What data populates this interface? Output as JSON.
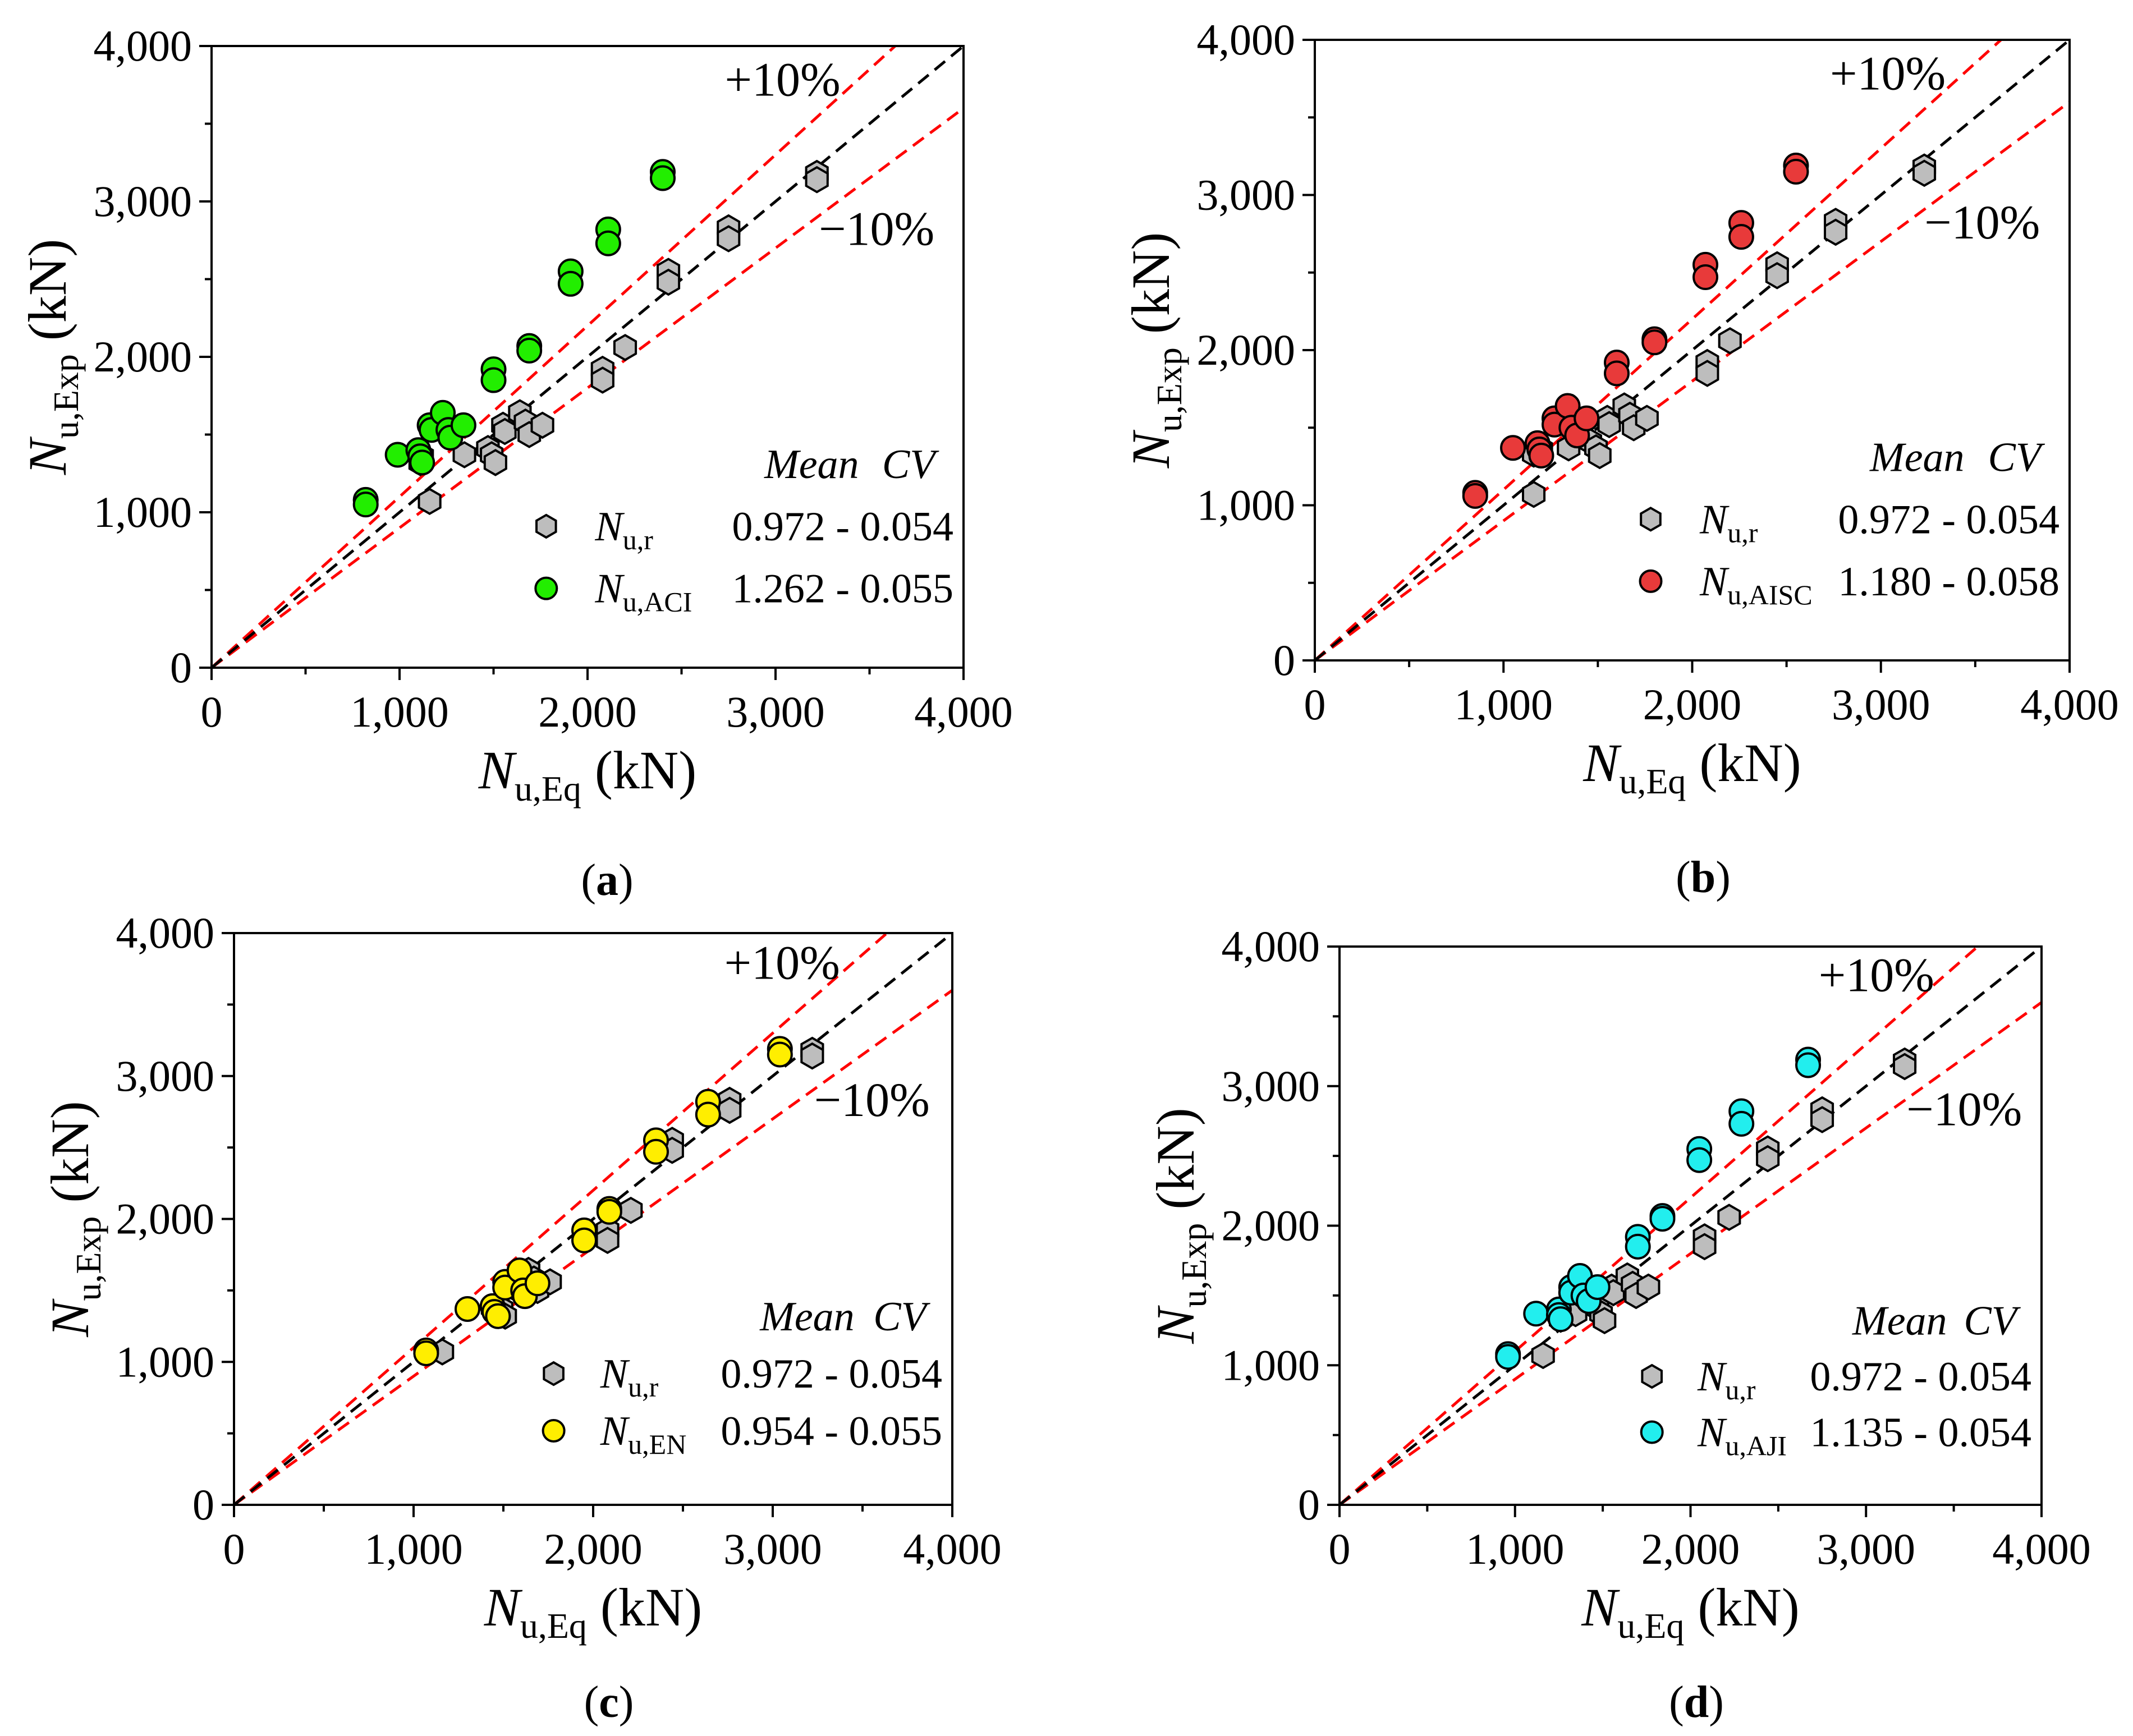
{
  "figure": {
    "legend_headers": {
      "mean": "Mean",
      "cv": "CV"
    },
    "colors": {
      "reference_fill": "#bdbdbd",
      "edge": "#000000",
      "guide_red": "#ff0000",
      "guide_black": "#000000"
    }
  },
  "chart_data": [
    {
      "panel": "a",
      "type": "scatter",
      "xlabel_main": "N",
      "xlabel_sub": "u,Eq",
      "xlabel_unit": "(kN)",
      "ylabel_main": "N",
      "ylabel_sub": "u,Exp",
      "ylabel_unit": "(kN)",
      "xlim": [
        0,
        4000
      ],
      "ylim": [
        0,
        4000
      ],
      "xticks": [
        0,
        1000,
        2000,
        3000,
        4000
      ],
      "yticks": [
        0,
        1000,
        2000,
        3000,
        4000
      ],
      "tick_labels": [
        "0",
        "1,000",
        "2,000",
        "3,000",
        "4,000"
      ],
      "guides": {
        "plus_label": "+10%",
        "minus_label": "−10%",
        "plus_factor": 1.1,
        "minus_factor": 0.9
      },
      "caption_open": "(",
      "caption_letter": "a",
      "caption_close": ")",
      "series": [
        {
          "name_main": "N",
          "name_sub": "u,r",
          "marker": "hexagon",
          "color": "#bdbdbd",
          "stats": "0.972 - 0.054",
          "points": [
            [
              1160,
              1070
            ],
            [
              1120,
              1360
            ],
            [
              1110,
              1320
            ],
            [
              1345,
              1370
            ],
            [
              1470,
              1410
            ],
            [
              1490,
              1370
            ],
            [
              1510,
              1320
            ],
            [
              1550,
              1560
            ],
            [
              1560,
              1520
            ],
            [
              1640,
              1640
            ],
            [
              1670,
              1580
            ],
            [
              1690,
              1500
            ],
            [
              1760,
              1560
            ],
            [
              2080,
              1920
            ],
            [
              2080,
              1850
            ],
            [
              2200,
              2060
            ],
            [
              2430,
              2550
            ],
            [
              2430,
              2480
            ],
            [
              2750,
              2830
            ],
            [
              2750,
              2760
            ],
            [
              3220,
              3180
            ],
            [
              3220,
              3140
            ]
          ]
        },
        {
          "name_main": "N",
          "name_sub": "u,ACI",
          "marker": "circle",
          "color": "#22ee00",
          "stats": "1.262 - 0.055",
          "points": [
            [
              820,
              1080
            ],
            [
              820,
              1050
            ],
            [
              990,
              1370
            ],
            [
              1100,
              1400
            ],
            [
              1110,
              1360
            ],
            [
              1120,
              1320
            ],
            [
              1160,
              1560
            ],
            [
              1170,
              1530
            ],
            [
              1230,
              1640
            ],
            [
              1260,
              1530
            ],
            [
              1270,
              1480
            ],
            [
              1340,
              1560
            ],
            [
              1500,
              1920
            ],
            [
              1500,
              1850
            ],
            [
              1690,
              2070
            ],
            [
              1690,
              2040
            ],
            [
              1910,
              2550
            ],
            [
              1910,
              2470
            ],
            [
              2110,
              2820
            ],
            [
              2110,
              2730
            ],
            [
              2400,
              3190
            ],
            [
              2400,
              3150
            ]
          ]
        }
      ]
    },
    {
      "panel": "b",
      "type": "scatter",
      "xlabel_main": "N",
      "xlabel_sub": "u,Eq",
      "xlabel_unit": "(kN)",
      "ylabel_main": "N",
      "ylabel_sub": "u,Exp",
      "ylabel_unit": "(kN)",
      "xlim": [
        0,
        4000
      ],
      "ylim": [
        0,
        4000
      ],
      "xticks": [
        0,
        1000,
        2000,
        3000,
        4000
      ],
      "yticks": [
        0,
        1000,
        2000,
        3000,
        4000
      ],
      "tick_labels": [
        "0",
        "1,000",
        "2,000",
        "3,000",
        "4,000"
      ],
      "guides": {
        "plus_label": "+10%",
        "minus_label": "−10%",
        "plus_factor": 1.1,
        "minus_factor": 0.9
      },
      "caption_open": "(",
      "caption_letter": "b",
      "caption_close": ")",
      "series": [
        {
          "name_main": "N",
          "name_sub": "u,r",
          "marker": "hexagon",
          "color": "#bdbdbd",
          "stats": "0.972 - 0.054",
          "points": [
            [
              1160,
              1070
            ],
            [
              1160,
              1330
            ],
            [
              1200,
              1360
            ],
            [
              1345,
              1370
            ],
            [
              1460,
              1410
            ],
            [
              1490,
              1370
            ],
            [
              1510,
              1320
            ],
            [
              1550,
              1560
            ],
            [
              1560,
              1520
            ],
            [
              1640,
              1640
            ],
            [
              1670,
              1580
            ],
            [
              1690,
              1500
            ],
            [
              1760,
              1560
            ],
            [
              2080,
              1920
            ],
            [
              2080,
              1850
            ],
            [
              2200,
              2060
            ],
            [
              2450,
              2550
            ],
            [
              2450,
              2480
            ],
            [
              2760,
              2830
            ],
            [
              2760,
              2760
            ],
            [
              3230,
              3180
            ],
            [
              3230,
              3140
            ]
          ]
        },
        {
          "name_main": "N",
          "name_sub": "u,AISC",
          "marker": "circle",
          "color": "#e83a3a",
          "stats": "1.180 - 0.058",
          "points": [
            [
              850,
              1080
            ],
            [
              850,
              1060
            ],
            [
              1050,
              1370
            ],
            [
              1180,
              1400
            ],
            [
              1190,
              1360
            ],
            [
              1200,
              1320
            ],
            [
              1270,
              1560
            ],
            [
              1270,
              1520
            ],
            [
              1340,
              1640
            ],
            [
              1360,
              1500
            ],
            [
              1390,
              1450
            ],
            [
              1440,
              1560
            ],
            [
              1600,
              1920
            ],
            [
              1600,
              1850
            ],
            [
              1800,
              2070
            ],
            [
              1800,
              2050
            ],
            [
              2070,
              2550
            ],
            [
              2070,
              2470
            ],
            [
              2260,
              2820
            ],
            [
              2260,
              2730
            ],
            [
              2550,
              3190
            ],
            [
              2550,
              3150
            ]
          ]
        }
      ]
    },
    {
      "panel": "c",
      "type": "scatter",
      "xlabel_main": "N",
      "xlabel_sub": "u,Eq",
      "xlabel_unit": "(kN)",
      "ylabel_main": "N",
      "ylabel_sub": "u,Exp",
      "ylabel_unit": "(kN)",
      "xlim": [
        0,
        4000
      ],
      "ylim": [
        0,
        4000
      ],
      "xticks": [
        0,
        1000,
        2000,
        3000,
        4000
      ],
      "yticks": [
        0,
        1000,
        2000,
        3000,
        4000
      ],
      "tick_labels": [
        "0",
        "1,000",
        "2,000",
        "3,000",
        "4,000"
      ],
      "guides": {
        "plus_label": "+10%",
        "minus_label": "−10%",
        "plus_factor": 1.1,
        "minus_factor": 0.9
      },
      "caption_open": "(",
      "caption_letter": "c",
      "caption_close": ")",
      "series": [
        {
          "name_main": "N",
          "name_sub": "u,r",
          "marker": "hexagon",
          "color": "#bdbdbd",
          "stats": "0.972 - 0.054",
          "points": [
            [
              1160,
              1070
            ],
            [
              1440,
              1380
            ],
            [
              1460,
              1340
            ],
            [
              1490,
              1370
            ],
            [
              1510,
              1320
            ],
            [
              1550,
              1560
            ],
            [
              1560,
              1520
            ],
            [
              1640,
              1640
            ],
            [
              1670,
              1580
            ],
            [
              1690,
              1500
            ],
            [
              1760,
              1560
            ],
            [
              2080,
              1920
            ],
            [
              2080,
              1850
            ],
            [
              2210,
              2060
            ],
            [
              2440,
              2550
            ],
            [
              2440,
              2480
            ],
            [
              2760,
              2830
            ],
            [
              2760,
              2760
            ],
            [
              3220,
              3180
            ],
            [
              3220,
              3140
            ]
          ]
        },
        {
          "name_main": "N",
          "name_sub": "u,EN",
          "marker": "circle",
          "color": "#ffee00",
          "stats": "0.954 - 0.055",
          "points": [
            [
              1070,
              1080
            ],
            [
              1070,
              1060
            ],
            [
              1300,
              1370
            ],
            [
              1440,
              1390
            ],
            [
              1450,
              1350
            ],
            [
              1470,
              1320
            ],
            [
              1510,
              1560
            ],
            [
              1510,
              1520
            ],
            [
              1590,
              1640
            ],
            [
              1610,
              1500
            ],
            [
              1620,
              1460
            ],
            [
              1690,
              1550
            ],
            [
              1950,
              1920
            ],
            [
              1950,
              1850
            ],
            [
              2090,
              2070
            ],
            [
              2090,
              2050
            ],
            [
              2350,
              2550
            ],
            [
              2350,
              2470
            ],
            [
              2640,
              2820
            ],
            [
              2640,
              2730
            ],
            [
              3040,
              3190
            ],
            [
              3040,
              3150
            ]
          ]
        }
      ]
    },
    {
      "panel": "d",
      "type": "scatter",
      "xlabel_main": "N",
      "xlabel_sub": "u,Eq",
      "xlabel_unit": "(kN)",
      "ylabel_main": "N",
      "ylabel_sub": "u,Exp",
      "ylabel_unit": "(kN)",
      "xlim": [
        0,
        4000
      ],
      "ylim": [
        0,
        4000
      ],
      "xticks": [
        0,
        1000,
        2000,
        3000,
        4000
      ],
      "yticks": [
        0,
        1000,
        2000,
        3000,
        4000
      ],
      "tick_labels": [
        "0",
        "1,000",
        "2,000",
        "3,000",
        "4,000"
      ],
      "guides": {
        "plus_label": "+10%",
        "minus_label": "−10%",
        "plus_factor": 1.1,
        "minus_factor": 0.9
      },
      "caption_open": "(",
      "caption_letter": "d",
      "caption_close": ")",
      "series": [
        {
          "name_main": "N",
          "name_sub": "u,r",
          "marker": "hexagon",
          "color": "#bdbdbd",
          "stats": "0.972 - 0.054",
          "points": [
            [
              1160,
              1070
            ],
            [
              1250,
              1380
            ],
            [
              1260,
              1330
            ],
            [
              1345,
              1370
            ],
            [
              1470,
              1410
            ],
            [
              1490,
              1370
            ],
            [
              1510,
              1320
            ],
            [
              1550,
              1560
            ],
            [
              1560,
              1520
            ],
            [
              1640,
              1640
            ],
            [
              1670,
              1580
            ],
            [
              1690,
              1500
            ],
            [
              1760,
              1560
            ],
            [
              2080,
              1920
            ],
            [
              2080,
              1850
            ],
            [
              2220,
              2060
            ],
            [
              2440,
              2550
            ],
            [
              2440,
              2480
            ],
            [
              2750,
              2830
            ],
            [
              2750,
              2760
            ],
            [
              3220,
              3180
            ],
            [
              3220,
              3140
            ]
          ]
        },
        {
          "name_main": "N",
          "name_sub": "u,AJI",
          "marker": "circle",
          "color": "#22eeee",
          "stats": "1.135 - 0.054",
          "points": [
            [
              960,
              1080
            ],
            [
              960,
              1060
            ],
            [
              1120,
              1370
            ],
            [
              1250,
              1400
            ],
            [
              1250,
              1360
            ],
            [
              1260,
              1330
            ],
            [
              1320,
              1560
            ],
            [
              1320,
              1520
            ],
            [
              1370,
              1640
            ],
            [
              1390,
              1500
            ],
            [
              1420,
              1460
            ],
            [
              1470,
              1560
            ],
            [
              1700,
              1920
            ],
            [
              1700,
              1850
            ],
            [
              1840,
              2070
            ],
            [
              1840,
              2050
            ],
            [
              2050,
              2550
            ],
            [
              2050,
              2470
            ],
            [
              2290,
              2820
            ],
            [
              2290,
              2730
            ],
            [
              2670,
              3190
            ],
            [
              2670,
              3150
            ]
          ]
        }
      ]
    }
  ]
}
